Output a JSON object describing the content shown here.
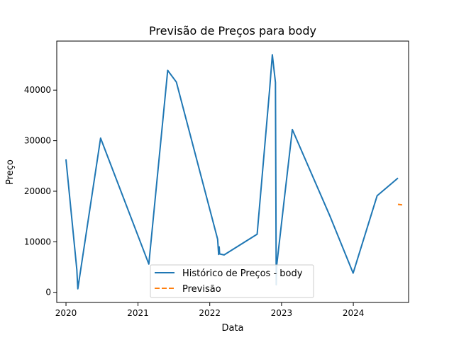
{
  "chart_data": {
    "type": "line",
    "title": "Previsão de Preços para body",
    "xlabel": "Data",
    "ylabel": "Preço",
    "xlim": [
      "2019-11-15",
      "2024-10-08"
    ],
    "ylim": [
      -2000,
      49700
    ],
    "x_ticks": [
      {
        "date": "2020-01-01",
        "label": "2020"
      },
      {
        "date": "2021-01-01",
        "label": "2021"
      },
      {
        "date": "2022-01-01",
        "label": "2022"
      },
      {
        "date": "2023-01-01",
        "label": "2023"
      },
      {
        "date": "2024-01-01",
        "label": "2024"
      }
    ],
    "y_ticks": [
      {
        "value": 0,
        "label": "0"
      },
      {
        "value": 10000,
        "label": "10000"
      },
      {
        "value": 20000,
        "label": "20000"
      },
      {
        "value": 30000,
        "label": "30000"
      },
      {
        "value": 40000,
        "label": "40000"
      }
    ],
    "grid": false,
    "legend_position": "bottom-center",
    "series": [
      {
        "name": "Histórico de Preços - body",
        "color": "#1f77b4",
        "style": "solid",
        "points": [
          {
            "x": "2020-01-01",
            "y": 26300
          },
          {
            "x": "2020-02-25",
            "y": 4500
          },
          {
            "x": "2020-03-01",
            "y": 700
          },
          {
            "x": "2020-06-25",
            "y": 30500
          },
          {
            "x": "2021-02-25",
            "y": 5600
          },
          {
            "x": "2021-06-01",
            "y": 43900
          },
          {
            "x": "2021-07-15",
            "y": 41600
          },
          {
            "x": "2022-02-10",
            "y": 10500
          },
          {
            "x": "2022-02-15",
            "y": 7500
          },
          {
            "x": "2022-02-18",
            "y": 9000
          },
          {
            "x": "2022-02-20",
            "y": 7600
          },
          {
            "x": "2022-03-15",
            "y": 7400
          },
          {
            "x": "2022-08-30",
            "y": 11500
          },
          {
            "x": "2022-11-01",
            "y": 40000
          },
          {
            "x": "2022-11-15",
            "y": 47000
          },
          {
            "x": "2022-12-01",
            "y": 41500
          },
          {
            "x": "2022-12-05",
            "y": 1500
          },
          {
            "x": "2022-12-08",
            "y": 5500
          },
          {
            "x": "2023-01-15",
            "y": 18500
          },
          {
            "x": "2023-02-25",
            "y": 32200
          },
          {
            "x": "2023-09-05",
            "y": 15000
          },
          {
            "x": "2023-12-31",
            "y": 3800
          },
          {
            "x": "2024-05-01",
            "y": 19100
          },
          {
            "x": "2024-08-15",
            "y": 22600
          }
        ]
      },
      {
        "name": "Previsão",
        "color": "#ff7f0e",
        "style": "dashed",
        "points": [
          {
            "x": "2024-08-15",
            "y": 17400
          },
          {
            "x": "2024-09-05",
            "y": 17300
          }
        ]
      }
    ]
  }
}
